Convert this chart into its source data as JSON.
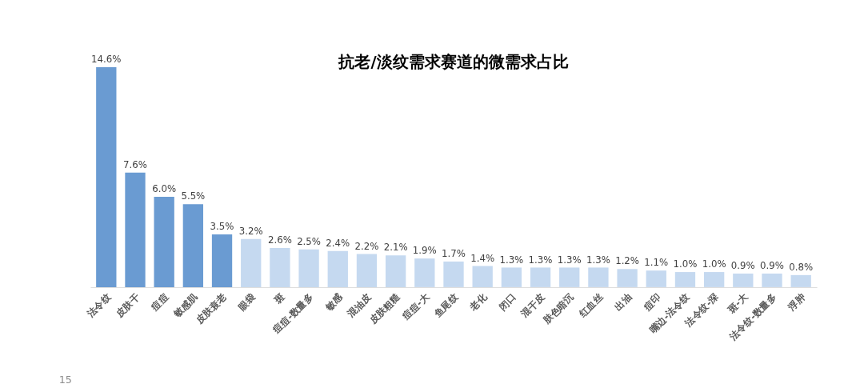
{
  "chart_data": {
    "type": "bar",
    "title": "抗老/淡纹需求赛道的微需求占比",
    "categories": [
      "法令纹",
      "皮肤干",
      "痘痘",
      "敏感肌",
      "皮肤衰老",
      "眼袋",
      "斑",
      "痘痘-数量多",
      "敏感",
      "混油皮",
      "皮肤粗糙",
      "痘痘-大",
      "鱼尾纹",
      "老化",
      "闭口",
      "混干皮",
      "肤色暗沉",
      "红血丝",
      "出油",
      "痘印",
      "嘴边-法令纹",
      "法令纹-深",
      "斑-大",
      "法令纹-数量多",
      "浮肿"
    ],
    "values": [
      14.6,
      7.6,
      6.0,
      5.5,
      3.5,
      3.2,
      2.6,
      2.5,
      2.4,
      2.2,
      2.1,
      1.9,
      1.7,
      1.4,
      1.3,
      1.3,
      1.3,
      1.3,
      1.2,
      1.1,
      1.0,
      1.0,
      0.9,
      0.9,
      0.8
    ],
    "colors": [
      "#6a9bd2",
      "#6a9bd2",
      "#6a9bd2",
      "#6a9bd2",
      "#6a9bd2",
      "#c5d9f0",
      "#c5d9f0",
      "#c5d9f0",
      "#c5d9f0",
      "#c5d9f0",
      "#c5d9f0",
      "#c5d9f0",
      "#c5d9f0",
      "#c5d9f0",
      "#c5d9f0",
      "#c5d9f0",
      "#c5d9f0",
      "#c5d9f0",
      "#c5d9f0",
      "#c5d9f0",
      "#c5d9f0",
      "#c5d9f0",
      "#c5d9f0",
      "#c5d9f0",
      "#c5d9f0"
    ],
    "value_labels": [
      "14.6%",
      "7.6%",
      "6.0%",
      "5.5%",
      "3.5%",
      "3.2%",
      "2.6%",
      "2.5%",
      "2.4%",
      "2.2%",
      "2.1%",
      "1.9%",
      "1.7%",
      "1.4%",
      "1.3%",
      "1.3%",
      "1.3%",
      "1.3%",
      "1.2%",
      "1.1%",
      "1.0%",
      "1.0%",
      "0.9%",
      "0.9%",
      "0.8%"
    ],
    "annotations": [
      "15"
    ],
    "grid": false
  }
}
